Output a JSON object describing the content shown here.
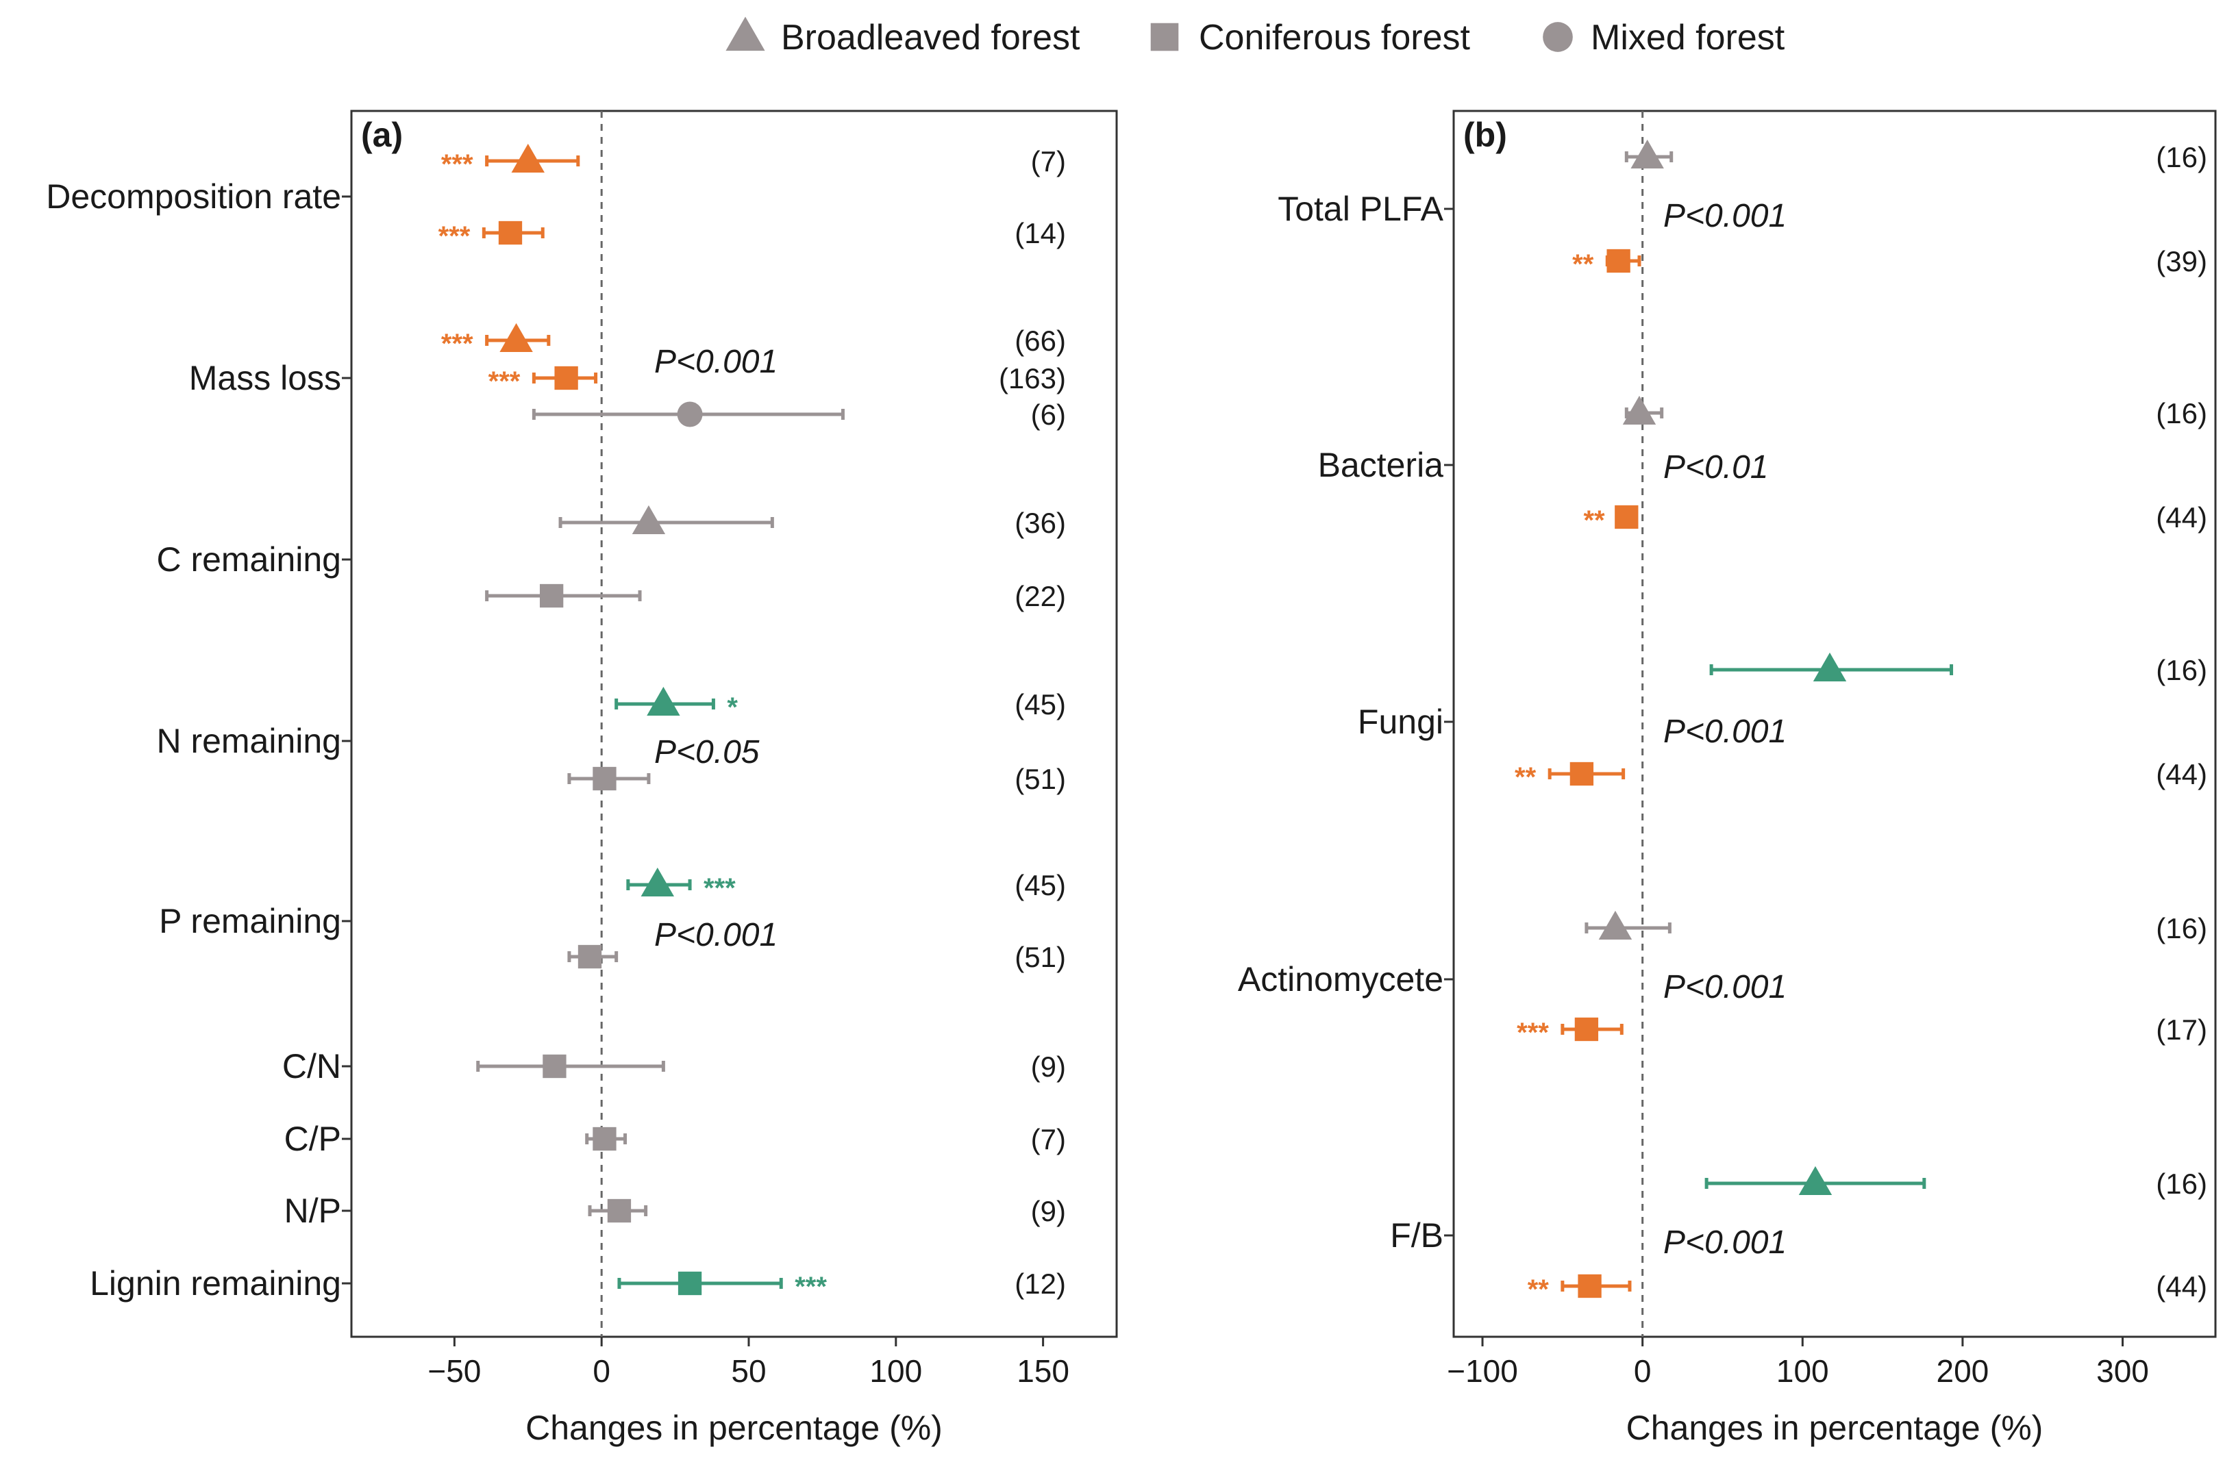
{
  "colors": {
    "negative": "#e8762d",
    "positive": "#3d9a7a",
    "neutral": "#9a9394",
    "axis": "#333333",
    "zero_line": "#666666"
  },
  "legend": [
    {
      "shape": "triangle",
      "label": "Broadleaved forest"
    },
    {
      "shape": "square",
      "label": "Coniferous forest"
    },
    {
      "shape": "circle",
      "label": "Mixed forest"
    }
  ],
  "chart_data": [
    {
      "type": "forest-plot",
      "panel": "(a)",
      "xlabel": "Changes in percentage  (%)",
      "xlim": [
        -85,
        175
      ],
      "xticks": [
        -50,
        0,
        50,
        100,
        150
      ],
      "xtick_labels": [
        "−50",
        "0",
        "50",
        "100",
        "150"
      ],
      "categories": [
        {
          "label": "Decomposition rate",
          "p_label": "",
          "points": [
            {
              "shape": "triangle",
              "mean": -25,
              "lo": -39,
              "hi": -8,
              "n": "(7)",
              "sig": "***",
              "color": "negative"
            },
            {
              "shape": "square",
              "mean": -31,
              "lo": -40,
              "hi": -20,
              "n": "(14)",
              "sig": "***",
              "color": "negative"
            }
          ]
        },
        {
          "label": "Mass loss",
          "p_label": "P<0.001",
          "points": [
            {
              "shape": "triangle",
              "mean": -29,
              "lo": -39,
              "hi": -18,
              "n": "(66)",
              "sig": "***",
              "color": "negative"
            },
            {
              "shape": "square",
              "mean": -12,
              "lo": -23,
              "hi": -2,
              "n": "(163)",
              "sig": "***",
              "color": "negative"
            },
            {
              "shape": "circle",
              "mean": 30,
              "lo": -23,
              "hi": 82,
              "n": "(6)",
              "sig": "",
              "color": "neutral"
            }
          ]
        },
        {
          "label": "C remaining",
          "p_label": "",
          "points": [
            {
              "shape": "triangle",
              "mean": 16,
              "lo": -14,
              "hi": 58,
              "n": "(36)",
              "sig": "",
              "color": "neutral"
            },
            {
              "shape": "square",
              "mean": -17,
              "lo": -39,
              "hi": 13,
              "n": "(22)",
              "sig": "",
              "color": "neutral"
            }
          ]
        },
        {
          "label": "N remaining",
          "p_label": "P<0.05",
          "points": [
            {
              "shape": "triangle",
              "mean": 21,
              "lo": 5,
              "hi": 38,
              "n": "(45)",
              "sig": "*",
              "color": "positive"
            },
            {
              "shape": "square",
              "mean": 1,
              "lo": -11,
              "hi": 16,
              "n": "(51)",
              "sig": "",
              "color": "neutral"
            }
          ]
        },
        {
          "label": "P remaining",
          "p_label": "P<0.001",
          "points": [
            {
              "shape": "triangle",
              "mean": 19,
              "lo": 9,
              "hi": 30,
              "n": "(45)",
              "sig": "***",
              "color": "positive"
            },
            {
              "shape": "square",
              "mean": -4,
              "lo": -11,
              "hi": 5,
              "n": "(51)",
              "sig": "",
              "color": "neutral"
            }
          ]
        },
        {
          "label": "C/N",
          "p_label": "",
          "points": [
            {
              "shape": "square",
              "mean": -16,
              "lo": -42,
              "hi": 21,
              "n": "(9)",
              "sig": "",
              "color": "neutral"
            }
          ]
        },
        {
          "label": "C/P",
          "p_label": "",
          "points": [
            {
              "shape": "square",
              "mean": 1,
              "lo": -5,
              "hi": 8,
              "n": "(7)",
              "sig": "",
              "color": "neutral"
            }
          ]
        },
        {
          "label": "N/P",
          "p_label": "",
          "points": [
            {
              "shape": "square",
              "mean": 6,
              "lo": -4,
              "hi": 15,
              "n": "(9)",
              "sig": "",
              "color": "neutral"
            }
          ]
        },
        {
          "label": "Lignin remaining",
          "p_label": "",
          "points": [
            {
              "shape": "square",
              "mean": 30,
              "lo": 6,
              "hi": 61,
              "n": "(12)",
              "sig": "***",
              "color": "positive"
            }
          ]
        }
      ]
    },
    {
      "type": "forest-plot",
      "panel": "(b)",
      "xlabel": "Changes in percentage  (%)",
      "xlim": [
        -118,
        358
      ],
      "xticks": [
        -100,
        0,
        100,
        200,
        300
      ],
      "xtick_labels": [
        "−100",
        "0",
        "100",
        "200",
        "300"
      ],
      "categories": [
        {
          "label": "Total PLFA",
          "p_label": "P<0.001",
          "points": [
            {
              "shape": "triangle",
              "mean": 3,
              "lo": -10,
              "hi": 18,
              "n": "(16)",
              "sig": "",
              "color": "neutral"
            },
            {
              "shape": "square",
              "mean": -15,
              "lo": -22,
              "hi": -2,
              "n": "(39)",
              "sig": "**",
              "color": "negative"
            }
          ]
        },
        {
          "label": "Bacteria",
          "p_label": "P<0.01",
          "points": [
            {
              "shape": "triangle",
              "mean": -2,
              "lo": -10,
              "hi": 12,
              "n": "(16)",
              "sig": "",
              "color": "neutral"
            },
            {
              "shape": "square",
              "mean": -10,
              "lo": -15,
              "hi": -4,
              "n": "(44)",
              "sig": "**",
              "color": "negative"
            }
          ]
        },
        {
          "label": "Fungi",
          "p_label": "P<0.001",
          "points": [
            {
              "shape": "triangle",
              "mean": 117,
              "lo": 43,
              "hi": 193,
              "n": "(16)",
              "sig": "",
              "color": "positive"
            },
            {
              "shape": "square",
              "mean": -38,
              "lo": -58,
              "hi": -12,
              "n": "(44)",
              "sig": "**",
              "color": "negative"
            }
          ]
        },
        {
          "label": "Actinomycete",
          "p_label": "P<0.001",
          "points": [
            {
              "shape": "triangle",
              "mean": -17,
              "lo": -35,
              "hi": 17,
              "n": "(16)",
              "sig": "",
              "color": "neutral"
            },
            {
              "shape": "square",
              "mean": -35,
              "lo": -50,
              "hi": -13,
              "n": "(17)",
              "sig": "***",
              "color": "negative"
            }
          ]
        },
        {
          "label": "F/B",
          "p_label": "P<0.001",
          "points": [
            {
              "shape": "triangle",
              "mean": 108,
              "lo": 40,
              "hi": 176,
              "n": "(16)",
              "sig": "",
              "color": "positive"
            },
            {
              "shape": "square",
              "mean": -33,
              "lo": -50,
              "hi": -8,
              "n": "(44)",
              "sig": "**",
              "color": "negative"
            }
          ]
        }
      ]
    }
  ]
}
